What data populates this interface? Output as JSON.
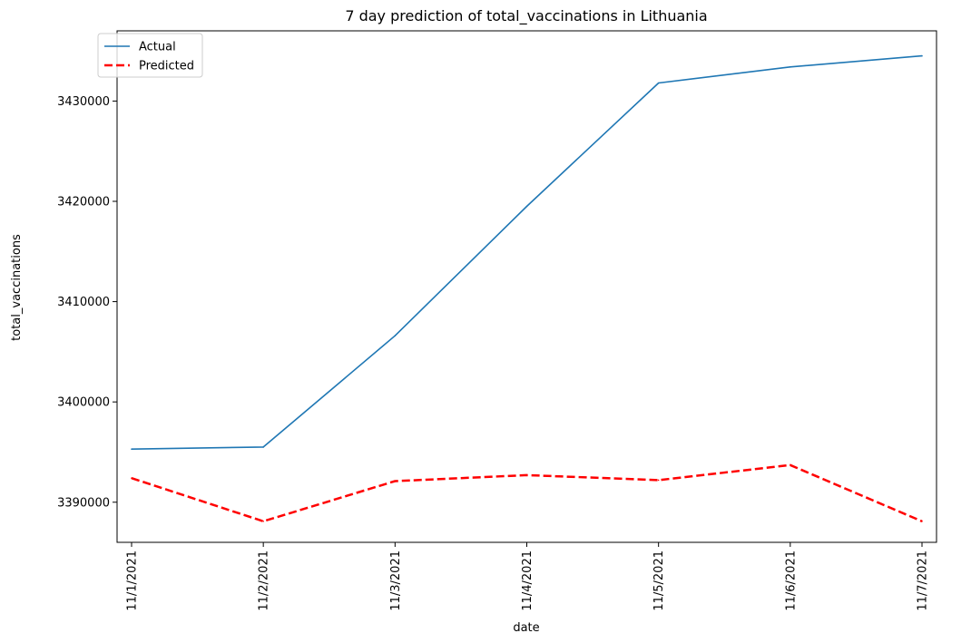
{
  "chart_data": {
    "type": "line",
    "title": "7 day prediction of total_vaccinations in Lithuania",
    "xlabel": "date",
    "ylabel": "total_vaccinations",
    "categories": [
      "11/1/2021",
      "11/2/2021",
      "11/3/2021",
      "11/4/2021",
      "11/5/2021",
      "11/6/2021",
      "11/7/2021"
    ],
    "yticks": [
      "3390000",
      "3400000",
      "3410000",
      "3420000",
      "3430000"
    ],
    "ylim": [
      3386000,
      3437000
    ],
    "legend_position": "upper-left",
    "grid": false,
    "series": [
      {
        "name": "Actual",
        "color": "#1f77b4",
        "style": "solid",
        "values": [
          3395300,
          3395500,
          3406600,
          3419500,
          3431800,
          3433400,
          3434500
        ]
      },
      {
        "name": "Predicted",
        "color": "#ff0000",
        "style": "dashed",
        "values": [
          3392400,
          3388100,
          3392100,
          3392700,
          3392200,
          3393700,
          3388100
        ]
      }
    ]
  }
}
